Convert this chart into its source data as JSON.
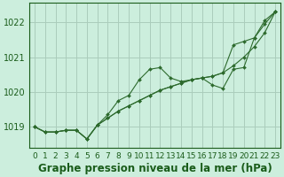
{
  "title": "Graphe pression niveau de la mer (hPa)",
  "background_color": "#cceedd",
  "grid_color": "#aaccbb",
  "line_color": "#2d6a2d",
  "marker_color": "#2d6a2d",
  "x_labels": [
    "0",
    "1",
    "2",
    "3",
    "4",
    "5",
    "6",
    "7",
    "8",
    "9",
    "10",
    "11",
    "12",
    "13",
    "14",
    "15",
    "16",
    "17",
    "18",
    "19",
    "20",
    "21",
    "22",
    "23"
  ],
  "x_values": [
    0,
    1,
    2,
    3,
    4,
    5,
    6,
    7,
    8,
    9,
    10,
    11,
    12,
    13,
    14,
    15,
    16,
    17,
    18,
    19,
    20,
    21,
    22,
    23
  ],
  "series_smooth": [
    1019.0,
    1018.85,
    1018.85,
    1018.9,
    1018.9,
    1018.65,
    1019.05,
    1019.25,
    1019.45,
    1019.6,
    1019.75,
    1019.9,
    1020.05,
    1020.15,
    1020.25,
    1020.35,
    1020.4,
    1020.45,
    1020.55,
    1020.75,
    1021.0,
    1021.3,
    1021.7,
    1022.3
  ],
  "series_upper": [
    1019.0,
    1018.85,
    1018.85,
    1018.9,
    1018.9,
    1018.65,
    1019.05,
    1019.35,
    1019.75,
    1019.9,
    1020.35,
    1020.65,
    1020.7,
    1020.4,
    1020.3,
    1020.35,
    1020.4,
    1020.2,
    1020.1,
    1020.65,
    1020.7,
    1021.55,
    1021.95,
    1022.3
  ],
  "series_lower": [
    1019.0,
    1018.85,
    1018.85,
    1018.9,
    1018.9,
    1018.65,
    1019.05,
    1019.25,
    1019.45,
    1019.6,
    1019.75,
    1019.9,
    1020.05,
    1020.15,
    1020.25,
    1020.35,
    1020.4,
    1020.45,
    1020.55,
    1021.35,
    1021.45,
    1021.55,
    1022.05,
    1022.3
  ],
  "ylim_min": 1018.4,
  "ylim_max": 1022.55,
  "yticks": [
    1019,
    1020,
    1021,
    1022
  ],
  "title_fontsize": 8.5,
  "tick_fontsize": 7,
  "axis_label_color": "#1a5c1a",
  "tick_color": "#1a5c1a"
}
